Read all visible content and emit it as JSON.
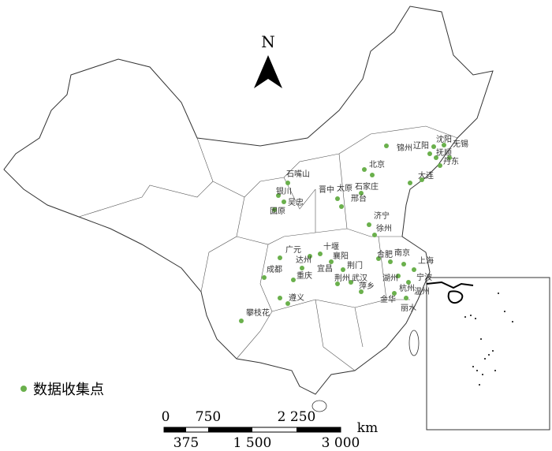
{
  "north_arrow": {
    "label": "N"
  },
  "legend": {
    "label": "数据收集点"
  },
  "scale_bar": {
    "top_labels": [
      "0",
      "750",
      "2 250"
    ],
    "bottom_labels": [
      "375",
      "1 500",
      "3 000"
    ],
    "unit": "km"
  },
  "cities": [
    {
      "label": "无锡"
    },
    {
      "label": "沈阳"
    },
    {
      "label": "锦州"
    },
    {
      "label": "辽阳"
    },
    {
      "label": "抚顺"
    },
    {
      "label": "丹东"
    },
    {
      "label": "大连"
    },
    {
      "label": "北京"
    },
    {
      "label": "石嘴山"
    },
    {
      "label": "银川"
    },
    {
      "label": "吴忠"
    },
    {
      "label": "固原"
    },
    {
      "label": "晋中"
    },
    {
      "label": "太原"
    },
    {
      "label": "石家庄"
    },
    {
      "label": "邢台"
    },
    {
      "label": "济宁"
    },
    {
      "label": "徐州"
    },
    {
      "label": "十堰"
    },
    {
      "label": "广元"
    },
    {
      "label": "达州"
    },
    {
      "label": "襄阳"
    },
    {
      "label": "宜昌"
    },
    {
      "label": "荆门"
    },
    {
      "label": "合肥"
    },
    {
      "label": "南京"
    },
    {
      "label": "上海"
    },
    {
      "label": "成都"
    },
    {
      "label": "重庆"
    },
    {
      "label": "荆州"
    },
    {
      "label": "武汉"
    },
    {
      "label": "湖州"
    },
    {
      "label": "宁波"
    },
    {
      "label": "杭州"
    },
    {
      "label": "遵义"
    },
    {
      "label": "萍乡"
    },
    {
      "label": "金华"
    },
    {
      "label": "温州"
    },
    {
      "label": "丽水"
    },
    {
      "label": "攀枝花"
    }
  ]
}
